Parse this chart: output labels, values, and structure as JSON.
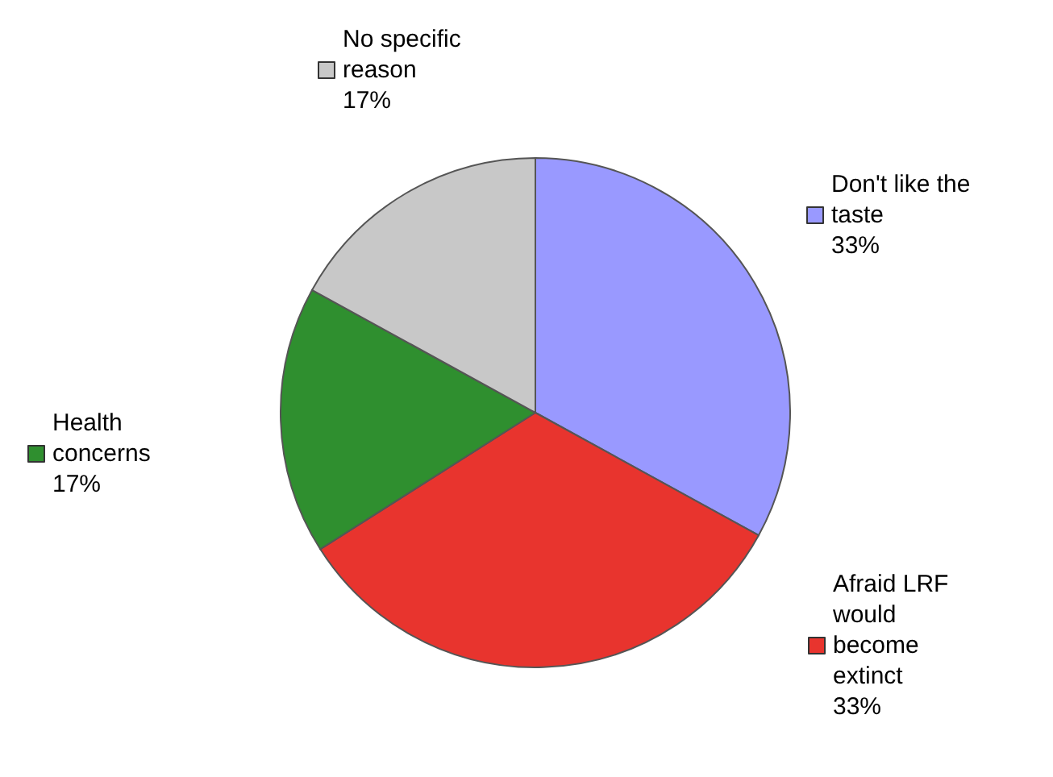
{
  "chart_data": {
    "type": "pie",
    "categories": [
      "Don't like the taste",
      "Afraid LRF would become extinct",
      "Health concerns",
      "No specific reason"
    ],
    "values": [
      33,
      33,
      17,
      17
    ],
    "colors": [
      "#9999ff",
      "#e8342e",
      "#2f8f2f",
      "#c8c8c8"
    ],
    "value_labels": [
      "33%",
      "33%",
      "17%",
      "17%"
    ],
    "legend": "top left"
  }
}
